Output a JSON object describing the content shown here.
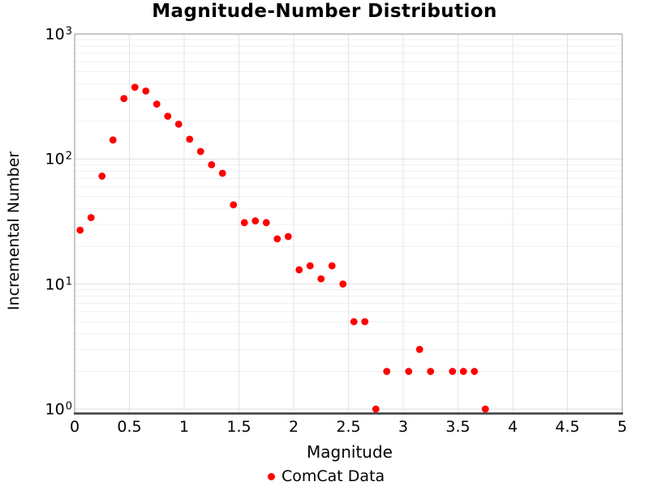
{
  "title": "Magnitude-Number Distribution",
  "chart_data": {
    "type": "scatter",
    "title": "Magnitude-Number Distribution",
    "xlabel": "Magnitude",
    "ylabel": "Incremental Number",
    "x_scale": "linear",
    "y_scale": "log",
    "xlim": [
      0,
      5
    ],
    "ylim": [
      1,
      1000
    ],
    "grid": "on",
    "legend_position": "bottom-center",
    "x_ticks": [
      0,
      0.5,
      1,
      1.5,
      2,
      2.5,
      3,
      3.5,
      4,
      4.5,
      5
    ],
    "x_tick_labels": [
      "0",
      "0.5",
      "1",
      "1.5",
      "2",
      "2.5",
      "3",
      "3.5",
      "4",
      "4.5",
      "5"
    ],
    "y_tick_base": "10",
    "y_tick_exponents": [
      "0",
      "1",
      "2",
      "3"
    ],
    "series": [
      {
        "name": "ComCat Data",
        "color": "#ff0000",
        "marker": "circle",
        "points": [
          [
            0.05,
            27
          ],
          [
            0.15,
            34
          ],
          [
            0.25,
            73
          ],
          [
            0.35,
            142
          ],
          [
            0.45,
            305
          ],
          [
            0.55,
            375
          ],
          [
            0.65,
            350
          ],
          [
            0.75,
            275
          ],
          [
            0.85,
            220
          ],
          [
            0.95,
            190
          ],
          [
            1.05,
            144
          ],
          [
            1.15,
            115
          ],
          [
            1.25,
            90
          ],
          [
            1.35,
            77
          ],
          [
            1.45,
            43
          ],
          [
            1.55,
            31
          ],
          [
            1.65,
            32
          ],
          [
            1.75,
            31
          ],
          [
            1.85,
            23
          ],
          [
            1.95,
            24
          ],
          [
            2.05,
            13
          ],
          [
            2.15,
            14
          ],
          [
            2.25,
            11
          ],
          [
            2.35,
            14
          ],
          [
            2.45,
            10
          ],
          [
            2.55,
            5
          ],
          [
            2.65,
            5
          ],
          [
            2.75,
            1
          ],
          [
            2.85,
            2
          ],
          [
            3.05,
            2
          ],
          [
            3.15,
            3
          ],
          [
            3.25,
            2
          ],
          [
            3.45,
            2
          ],
          [
            3.55,
            2
          ],
          [
            3.65,
            2
          ],
          [
            3.75,
            1
          ]
        ]
      }
    ]
  },
  "legend": {
    "label": "ComCat Data",
    "dot_color": "#ff0000"
  },
  "colors": {
    "marker": "#ff0000",
    "grid_major": "#dedede",
    "grid_minor": "#efefef",
    "grid_vertical": "#e4e4e4",
    "spine": "#a8a8a8",
    "axis_bottom": "#3a3a3a",
    "text": "#000000"
  }
}
